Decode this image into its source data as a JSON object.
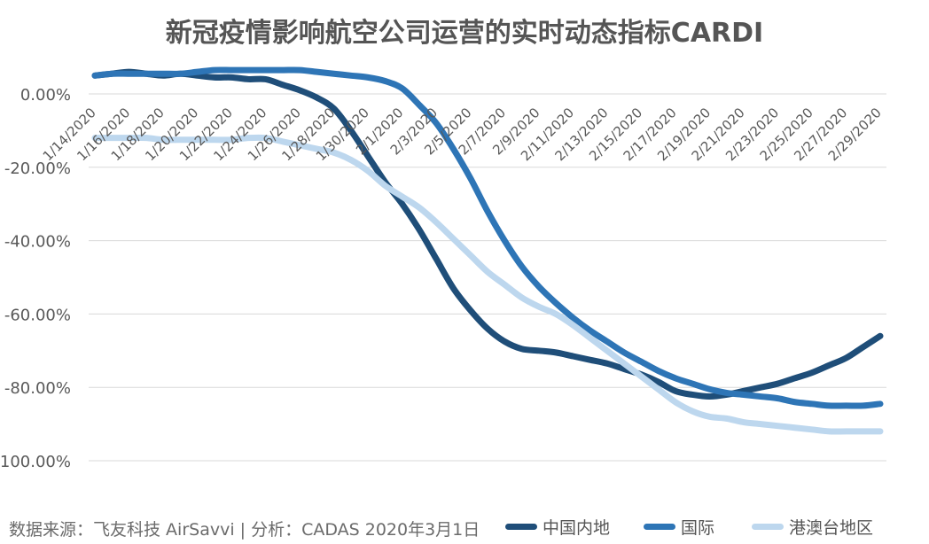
{
  "chart_data": {
    "type": "line",
    "title": "新冠疫情影响航空公司运营的实时动态指标CARDI",
    "x": [
      "1/14/2020",
      "1/15/2020",
      "1/16/2020",
      "1/17/2020",
      "1/18/2020",
      "1/19/2020",
      "1/20/2020",
      "1/21/2020",
      "1/22/2020",
      "1/23/2020",
      "1/24/2020",
      "1/25/2020",
      "1/26/2020",
      "1/27/2020",
      "1/28/2020",
      "1/29/2020",
      "1/30/2020",
      "1/31/2020",
      "2/1/2020",
      "2/2/2020",
      "2/3/2020",
      "2/4/2020",
      "2/5/2020",
      "2/6/2020",
      "2/7/2020",
      "2/8/2020",
      "2/9/2020",
      "2/10/2020",
      "2/11/2020",
      "2/12/2020",
      "2/13/2020",
      "2/14/2020",
      "2/15/2020",
      "2/16/2020",
      "2/17/2020",
      "2/18/2020",
      "2/19/2020",
      "2/20/2020",
      "2/21/2020",
      "2/22/2020",
      "2/23/2020",
      "2/24/2020",
      "2/25/2020",
      "2/26/2020",
      "2/27/2020",
      "2/28/2020",
      "2/29/2020"
    ],
    "tick_labels": [
      "1/14/2020",
      "1/16/2020",
      "1/18/2020",
      "1/20/2020",
      "1/22/2020",
      "1/24/2020",
      "1/26/2020",
      "1/28/2020",
      "1/30/2020",
      "2/1/2020",
      "2/3/2020",
      "2/5/2020",
      "2/7/2020",
      "2/9/2020",
      "2/11/2020",
      "2/13/2020",
      "2/15/2020",
      "2/17/2020",
      "2/19/2020",
      "2/21/2020",
      "2/23/2020",
      "2/25/2020",
      "2/27/2020",
      "2/29/2020"
    ],
    "y_ticks": [
      0,
      -20,
      -40,
      -60,
      -80,
      -100
    ],
    "y_tick_labels": [
      "0.00%",
      "-20.00%",
      "-40.00%",
      "-60.00%",
      "-80.00%",
      "-100.00%"
    ],
    "ylim": [
      -100,
      10
    ],
    "grid": true,
    "legend_position": "bottom-right",
    "series": [
      {
        "name": "中国内地",
        "color": "#1f4e79",
        "values": [
          5,
          5.5,
          6,
          5.5,
          5,
          5.5,
          5,
          4.5,
          4.5,
          4,
          4,
          2.5,
          1,
          -1,
          -4,
          -10,
          -17,
          -24,
          -30,
          -37,
          -45,
          -53,
          -59,
          -64,
          -67.5,
          -69.5,
          -70,
          -70.5,
          -71.5,
          -72.5,
          -73.5,
          -75,
          -76.5,
          -78.5,
          -81,
          -82,
          -82.5,
          -82,
          -81,
          -80,
          -79,
          -77.5,
          -76,
          -74,
          -72,
          -69,
          -66
        ]
      },
      {
        "name": "国际",
        "color": "#2e75b6",
        "values": [
          5,
          5.5,
          5.5,
          5.5,
          5.5,
          5.5,
          6,
          6.5,
          6.5,
          6.5,
          6.5,
          6.5,
          6.5,
          6,
          5.5,
          5,
          4.5,
          3.5,
          1.5,
          -3,
          -8,
          -15,
          -23,
          -32,
          -40,
          -47,
          -52.5,
          -57,
          -61,
          -64.5,
          -67.5,
          -70.5,
          -73,
          -75.5,
          -77.5,
          -79,
          -80.5,
          -81.5,
          -82,
          -82.5,
          -83,
          -84,
          -84.5,
          -85,
          -85,
          -85,
          -84.5
        ]
      },
      {
        "name": "港澳台地区",
        "color": "#bdd7ee",
        "values": [
          -12,
          -12,
          -12,
          -12,
          -12.5,
          -12.5,
          -12.5,
          -12.5,
          -12.5,
          -12,
          -12,
          -13,
          -14,
          -15,
          -16,
          -18,
          -21,
          -25,
          -28,
          -31,
          -35,
          -39.5,
          -44,
          -48.5,
          -52,
          -55.5,
          -58,
          -60,
          -63,
          -66.5,
          -70,
          -73.5,
          -77,
          -80.5,
          -84,
          -86.5,
          -88,
          -88.5,
          -89.5,
          -90,
          -90.5,
          -91,
          -91.5,
          -92,
          -92,
          -92,
          -92
        ]
      }
    ]
  },
  "footer": {
    "source_text": "数据来源：飞友科技 AirSavvi | 分析：CADAS 2020年3月1日"
  }
}
